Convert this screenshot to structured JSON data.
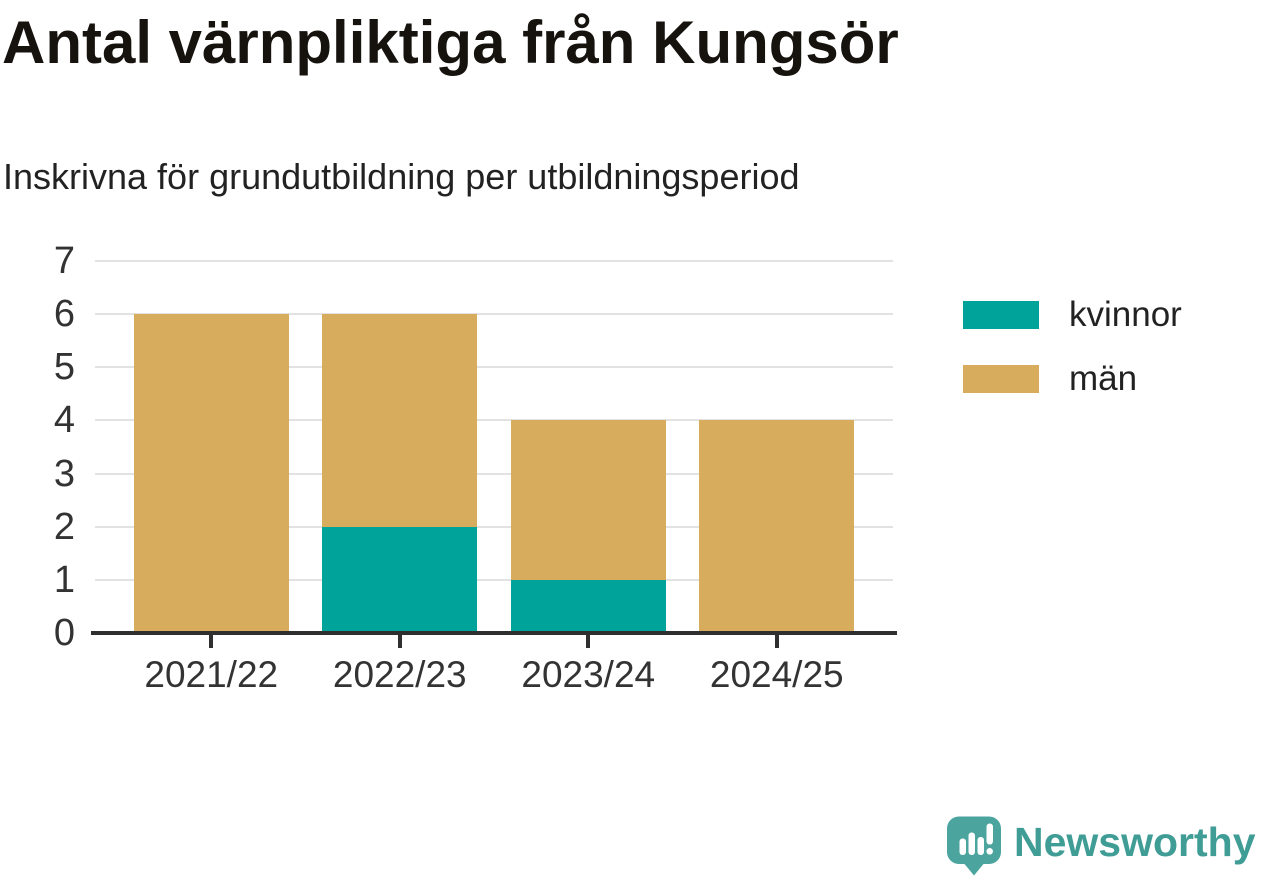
{
  "header": {
    "title": "Antal värnpliktiga från Kungsör",
    "subtitle": "Inskrivna för grundutbildning per utbildningsperiod"
  },
  "chart_data": {
    "type": "bar",
    "stacked": true,
    "title": "Antal värnpliktiga från Kungsör",
    "subtitle": "Inskrivna för grundutbildning per utbildningsperiod",
    "categories": [
      "2021/22",
      "2022/23",
      "2023/24",
      "2024/25"
    ],
    "series": [
      {
        "name": "kvinnor",
        "color": "#00a39a",
        "values": [
          0,
          2,
          1,
          0
        ]
      },
      {
        "name": "män",
        "color": "#d7ac5c",
        "values": [
          6,
          4,
          3,
          4
        ]
      }
    ],
    "totals": [
      6,
      6,
      4,
      4
    ],
    "xlabel": "",
    "ylabel": "",
    "ylim": [
      0,
      7
    ],
    "yticks": [
      0,
      1,
      2,
      3,
      4,
      5,
      6,
      7
    ],
    "grid": true,
    "legend_position": "right"
  },
  "legend": {
    "items": [
      {
        "label": "kvinnor",
        "color": "#00a39a"
      },
      {
        "label": "män",
        "color": "#d7ac5c"
      }
    ]
  },
  "branding": {
    "logo_text": "Newsworthy",
    "logo_color": "#3f9d96",
    "icon_color": "#4ba49e"
  },
  "colors": {
    "kvinnor": "#00a39a",
    "man": "#d7ac5c",
    "axis": "#2f2f2f",
    "grid": "#e2e2e2",
    "tick_text": "#333333"
  }
}
